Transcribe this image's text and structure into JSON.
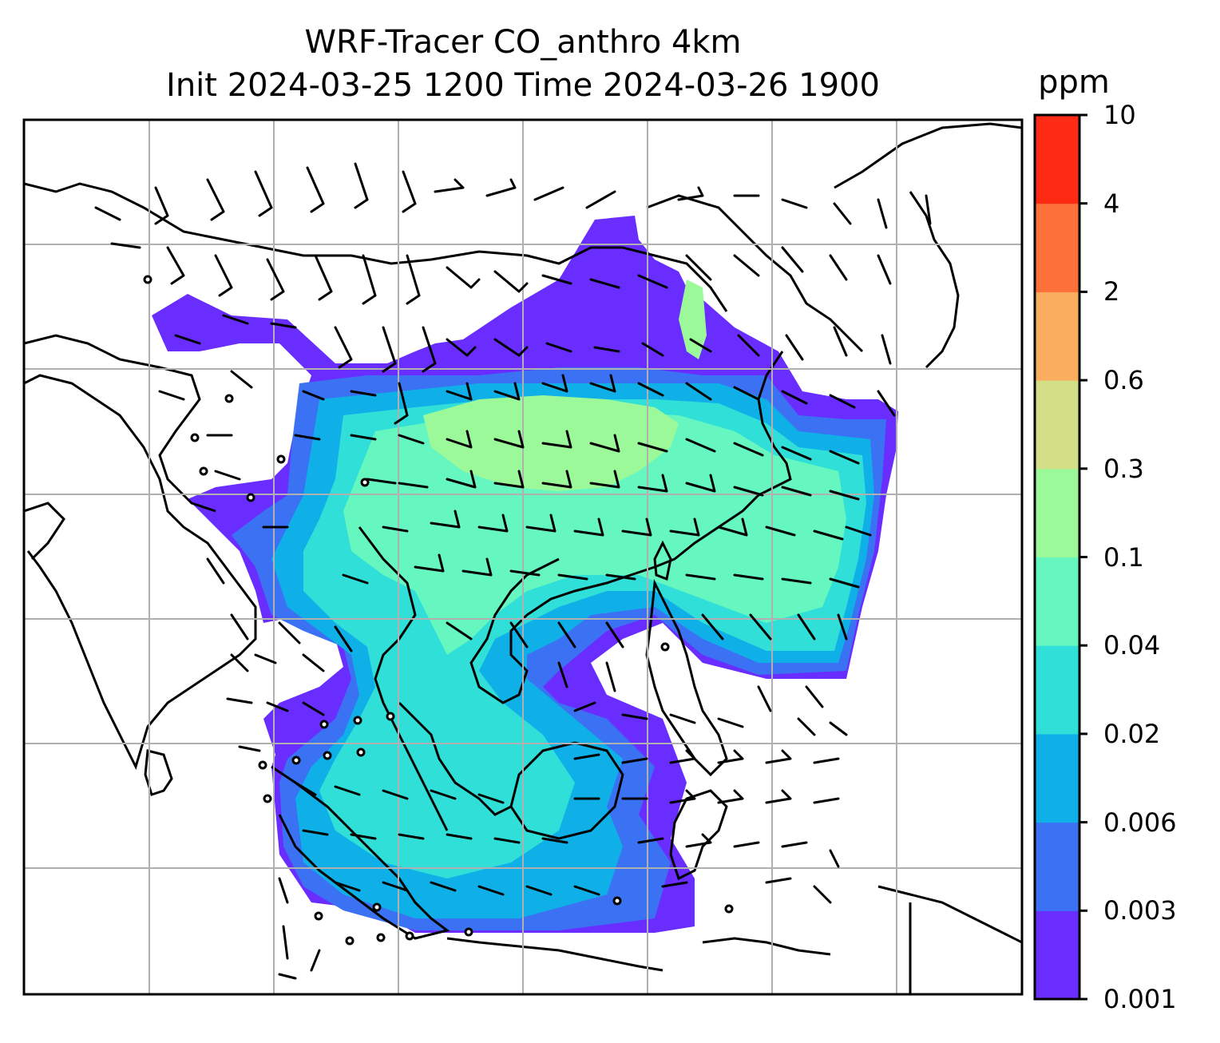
{
  "title": {
    "line1": "WRF-Tracer CO_anthro 4km",
    "line2": "Init 2024-03-25 1200 Time 2024-03-26 1900"
  },
  "colorbar": {
    "unit": "ppm",
    "levels": [
      "0.001",
      "0.003",
      "0.006",
      "0.02",
      "0.04",
      "0.1",
      "0.3",
      "0.6",
      "2",
      "4",
      "10"
    ],
    "colors": [
      "#6a2dff",
      "#3a72f3",
      "#0fb0e8",
      "#30e0d8",
      "#66f7c0",
      "#9cf99a",
      "#d2df87",
      "#fbad5f",
      "#fe7039",
      "#ff2a14"
    ]
  },
  "map": {
    "region": "South and Southeast Asia",
    "land_color": "#ffffff",
    "outline_color": "#000000",
    "grid_color": "#b0b0b0",
    "icons": [
      "wind-barb-icon",
      "calm-wind-circle-icon"
    ]
  }
}
